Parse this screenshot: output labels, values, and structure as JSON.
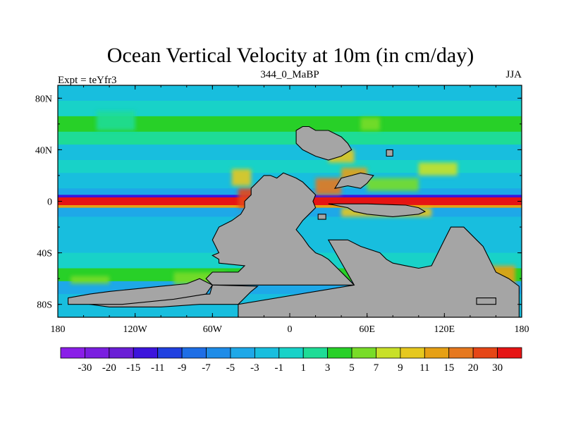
{
  "chart_data": {
    "type": "heatmap",
    "title": "Ocean Vertical Velocity at 10m (in cm/day)",
    "left_string": "Expt = teYfr3",
    "center_string": "344_0_MaBP",
    "right_string": "JJA",
    "xlim": [
      -180,
      180
    ],
    "ylim": [
      -90,
      90
    ],
    "x_ticks": [
      {
        "value": -180,
        "label": "180"
      },
      {
        "value": -120,
        "label": "120W"
      },
      {
        "value": -60,
        "label": "60W"
      },
      {
        "value": 0,
        "label": "0"
      },
      {
        "value": 60,
        "label": "60E"
      },
      {
        "value": 120,
        "label": "120E"
      },
      {
        "value": 180,
        "label": "180"
      }
    ],
    "y_ticks": [
      {
        "value": 80,
        "label": "80N"
      },
      {
        "value": 40,
        "label": "40N"
      },
      {
        "value": 0,
        "label": "0"
      },
      {
        "value": -40,
        "label": "40S"
      },
      {
        "value": -80,
        "label": "80S"
      }
    ],
    "colorbar": {
      "labels": [
        "-30",
        "-20",
        "-15",
        "-11",
        "-9",
        "-7",
        "-5",
        "-3",
        "-1",
        "1",
        "3",
        "5",
        "7",
        "9",
        "11",
        "15",
        "20",
        "30"
      ],
      "colors": [
        "#8a1ee8",
        "#7a1ee0",
        "#6a1ed6",
        "#3c14dc",
        "#2040e0",
        "#1e6ee6",
        "#1e8ce8",
        "#1ea8e8",
        "#18bede",
        "#18d2c8",
        "#1edc96",
        "#28d028",
        "#78dc28",
        "#c8e028",
        "#e6c81e",
        "#e6a014",
        "#e6781e",
        "#e64616",
        "#e61414"
      ]
    },
    "zonal_bands": [
      {
        "lat_from": 90,
        "lat_to": 78,
        "level": 8
      },
      {
        "lat_from": 78,
        "lat_to": 66,
        "level": 9
      },
      {
        "lat_from": 66,
        "lat_to": 54,
        "level": 11
      },
      {
        "lat_from": 54,
        "lat_to": 44,
        "level": 10
      },
      {
        "lat_from": 44,
        "lat_to": 32,
        "level": 8
      },
      {
        "lat_from": 32,
        "lat_to": 22,
        "level": 9
      },
      {
        "lat_from": 22,
        "lat_to": 10,
        "level": 8
      },
      {
        "lat_from": 10,
        "lat_to": 5,
        "level": 7
      },
      {
        "lat_from": 5,
        "lat_to": 3,
        "level": 3
      },
      {
        "lat_from": 3,
        "lat_to": -3,
        "level": 18
      },
      {
        "lat_from": -3,
        "lat_to": -5,
        "level": 15
      },
      {
        "lat_from": -5,
        "lat_to": -12,
        "level": 7
      },
      {
        "lat_from": -12,
        "lat_to": -25,
        "level": 8
      },
      {
        "lat_from": -25,
        "lat_to": -40,
        "level": 8
      },
      {
        "lat_from": -40,
        "lat_to": -52,
        "level": 9
      },
      {
        "lat_from": -52,
        "lat_to": -62,
        "level": 11
      },
      {
        "lat_from": -62,
        "lat_to": -72,
        "level": 7
      },
      {
        "lat_from": -72,
        "lat_to": -90,
        "level": 8
      }
    ],
    "patches": [
      {
        "lon": [
          -40,
          -20
        ],
        "lat": [
          -5,
          10
        ],
        "level": 17
      },
      {
        "lon": [
          -45,
          -30
        ],
        "lat": [
          12,
          25
        ],
        "level": 14
      },
      {
        "lon": [
          -40,
          -30
        ],
        "lat": [
          -12,
          -20
        ],
        "level": 16
      },
      {
        "lon": [
          20,
          40
        ],
        "lat": [
          5,
          18
        ],
        "level": 16
      },
      {
        "lon": [
          40,
          60
        ],
        "lat": [
          14,
          26
        ],
        "level": 15
      },
      {
        "lon": [
          60,
          100
        ],
        "lat": [
          8,
          18
        ],
        "level": 12
      },
      {
        "lon": [
          40,
          110
        ],
        "lat": [
          -5,
          -12
        ],
        "level": 14
      },
      {
        "lon": [
          30,
          50
        ],
        "lat": [
          30,
          40
        ],
        "level": 14
      },
      {
        "lon": [
          55,
          70
        ],
        "lat": [
          55,
          65
        ],
        "level": 12
      },
      {
        "lon": [
          100,
          130
        ],
        "lat": [
          20,
          30
        ],
        "level": 13
      },
      {
        "lon": [
          -90,
          -50
        ],
        "lat": [
          -55,
          -65
        ],
        "level": 12
      },
      {
        "lon": [
          150,
          175
        ],
        "lat": [
          -50,
          -68
        ],
        "level": 15
      },
      {
        "lon": [
          -150,
          -120
        ],
        "lat": [
          55,
          70
        ],
        "level": 10
      },
      {
        "lon": [
          -170,
          -140
        ],
        "lat": [
          -58,
          -64
        ],
        "level": 12
      }
    ],
    "land": [
      [
        [
          -30,
          10
        ],
        [
          -20,
          20
        ],
        [
          -15,
          20
        ],
        [
          -10,
          18
        ],
        [
          -5,
          22
        ],
        [
          0,
          20
        ],
        [
          5,
          18
        ],
        [
          10,
          15
        ],
        [
          15,
          10
        ],
        [
          20,
          5
        ],
        [
          18,
          0
        ],
        [
          20,
          -5
        ],
        [
          15,
          -10
        ],
        [
          10,
          -15
        ],
        [
          5,
          -22
        ],
        [
          10,
          -28
        ],
        [
          15,
          -35
        ],
        [
          20,
          -40
        ],
        [
          25,
          -42
        ],
        [
          30,
          -45
        ],
        [
          35,
          -50
        ],
        [
          40,
          -55
        ],
        [
          45,
          -60
        ],
        [
          50,
          -65
        ],
        [
          -60,
          -65
        ],
        [
          -65,
          -60
        ],
        [
          -60,
          -55
        ],
        [
          -40,
          -55
        ],
        [
          -35,
          -50
        ],
        [
          -55,
          -48
        ],
        [
          -55,
          -45
        ],
        [
          -60,
          -42
        ],
        [
          -55,
          -40
        ],
        [
          -60,
          -30
        ],
        [
          -55,
          -20
        ],
        [
          -45,
          -15
        ],
        [
          -38,
          -10
        ],
        [
          -35,
          -5
        ],
        [
          -35,
          0
        ],
        [
          -30,
          5
        ]
      ],
      [
        [
          -60,
          -65
        ],
        [
          -62,
          -72
        ],
        [
          -150,
          -75
        ],
        [
          -155,
          -80
        ],
        [
          -140,
          -82
        ],
        [
          -100,
          -82
        ],
        [
          -70,
          -80
        ],
        [
          -40,
          -80
        ],
        [
          -30,
          -70
        ],
        [
          -25,
          -66
        ]
      ],
      [
        [
          30,
          -30
        ],
        [
          45,
          -30
        ],
        [
          55,
          -35
        ],
        [
          70,
          -40
        ],
        [
          75,
          -45
        ],
        [
          80,
          -48
        ],
        [
          90,
          -50
        ],
        [
          100,
          -52
        ],
        [
          110,
          -50
        ],
        [
          115,
          -40
        ],
        [
          120,
          -30
        ],
        [
          125,
          -20
        ],
        [
          135,
          -20
        ],
        [
          145,
          -30
        ],
        [
          150,
          -35
        ],
        [
          155,
          -45
        ],
        [
          160,
          -55
        ],
        [
          170,
          -60
        ],
        [
          178,
          -66
        ],
        [
          178,
          -90
        ],
        [
          -40,
          -90
        ],
        [
          -40,
          -80
        ],
        [
          50,
          -65
        ]
      ],
      [
        [
          5,
          55
        ],
        [
          10,
          58
        ],
        [
          15,
          58
        ],
        [
          20,
          55
        ],
        [
          30,
          55
        ],
        [
          40,
          50
        ],
        [
          45,
          45
        ],
        [
          48,
          40
        ],
        [
          40,
          35
        ],
        [
          30,
          32
        ],
        [
          20,
          35
        ],
        [
          10,
          40
        ],
        [
          5,
          45
        ]
      ],
      [
        [
          30,
          -2
        ],
        [
          60,
          -2
        ],
        [
          90,
          -3
        ],
        [
          100,
          -5
        ],
        [
          105,
          -8
        ],
        [
          100,
          -10
        ],
        [
          80,
          -12
        ],
        [
          60,
          -10
        ],
        [
          50,
          -8
        ],
        [
          45,
          -5
        ]
      ],
      [
        [
          35,
          10
        ],
        [
          45,
          12
        ],
        [
          55,
          10
        ],
        [
          60,
          14
        ],
        [
          65,
          20
        ],
        [
          55,
          22
        ],
        [
          48,
          20
        ],
        [
          40,
          18
        ]
      ],
      [
        [
          -172,
          -75
        ],
        [
          -155,
          -72
        ],
        [
          -140,
          -70
        ],
        [
          -120,
          -68
        ],
        [
          -100,
          -66
        ],
        [
          -80,
          -64
        ],
        [
          -70,
          -60
        ],
        [
          -60,
          -65
        ],
        [
          -65,
          -72
        ],
        [
          -90,
          -76
        ],
        [
          -130,
          -80
        ],
        [
          -172,
          -80
        ]
      ],
      [
        [
          145,
          -75
        ],
        [
          160,
          -75
        ],
        [
          160,
          -80
        ],
        [
          145,
          -80
        ]
      ],
      [
        [
          75,
          40
        ],
        [
          80,
          40
        ],
        [
          80,
          35
        ],
        [
          75,
          35
        ]
      ],
      [
        [
          22,
          -10
        ],
        [
          28,
          -10
        ],
        [
          28,
          -14
        ],
        [
          22,
          -14
        ]
      ]
    ]
  }
}
